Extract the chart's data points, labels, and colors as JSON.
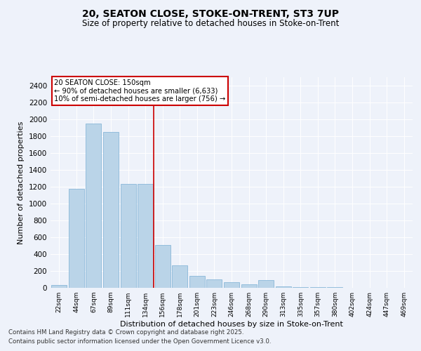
{
  "title1": "20, SEATON CLOSE, STOKE-ON-TRENT, ST3 7UP",
  "title2": "Size of property relative to detached houses in Stoke-on-Trent",
  "xlabel": "Distribution of detached houses by size in Stoke-on-Trent",
  "ylabel": "Number of detached properties",
  "categories": [
    "22sqm",
    "44sqm",
    "67sqm",
    "89sqm",
    "111sqm",
    "134sqm",
    "156sqm",
    "178sqm",
    "201sqm",
    "223sqm",
    "246sqm",
    "268sqm",
    "290sqm",
    "313sqm",
    "335sqm",
    "357sqm",
    "380sqm",
    "402sqm",
    "424sqm",
    "447sqm",
    "469sqm"
  ],
  "values": [
    35,
    1175,
    1950,
    1850,
    1230,
    1230,
    510,
    270,
    145,
    100,
    65,
    40,
    90,
    20,
    10,
    5,
    5,
    3,
    2,
    2,
    2
  ],
  "bar_color": "#bad4e8",
  "bar_edge_color": "#7aafd4",
  "vline_color": "#cc0000",
  "vline_x_idx": 5.5,
  "annotation_text": "20 SEATON CLOSE: 150sqm\n← 90% of detached houses are smaller (6,633)\n10% of semi-detached houses are larger (756) →",
  "annotation_box_facecolor": "#ffffff",
  "annotation_box_edgecolor": "#cc0000",
  "ylim": [
    0,
    2500
  ],
  "yticks": [
    0,
    200,
    400,
    600,
    800,
    1000,
    1200,
    1400,
    1600,
    1800,
    2000,
    2200,
    2400
  ],
  "background_color": "#eef2fa",
  "grid_color": "#ffffff",
  "footer1": "Contains HM Land Registry data © Crown copyright and database right 2025.",
  "footer2": "Contains public sector information licensed under the Open Government Licence v3.0."
}
